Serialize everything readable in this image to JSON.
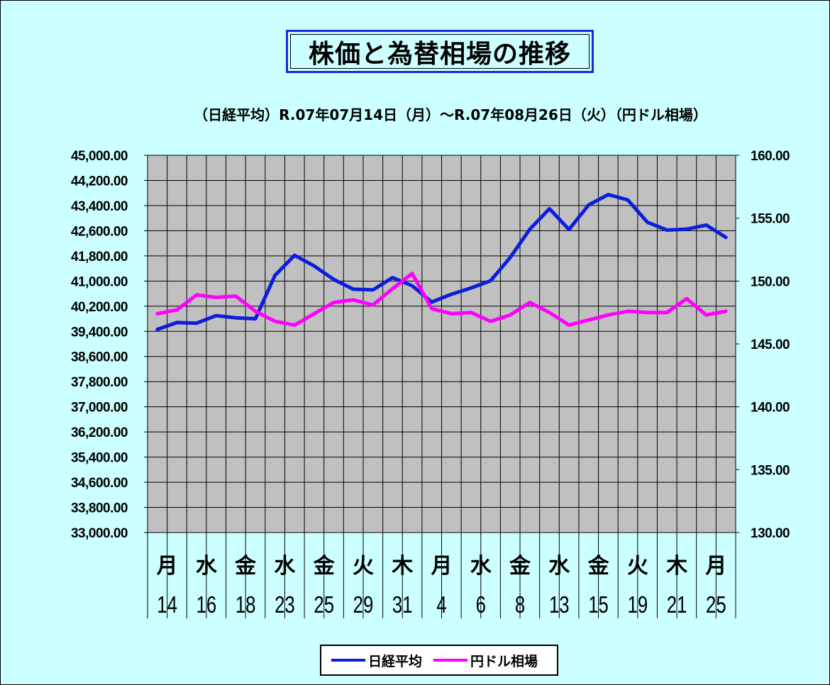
{
  "title": "株価と為替相場の推移",
  "subtitle": "（日経平均）R.07年07月14日（月）～R.07年08月26日（火）（円ドル相場）",
  "chart_data": {
    "type": "line",
    "title": "株価と為替相場の推移",
    "subtitle": "（日経平均）R.07年07月14日（月）～R.07年08月26日（火）（円ドル相場）",
    "x_weekday_labels": [
      "月",
      "水",
      "金",
      "水",
      "金",
      "火",
      "木",
      "月",
      "水",
      "金",
      "水",
      "金",
      "火",
      "木",
      "月"
    ],
    "x_day_labels": [
      "14",
      "16",
      "18",
      "23",
      "25",
      "29",
      "31",
      "4",
      "6",
      "8",
      "13",
      "15",
      "19",
      "21",
      "25"
    ],
    "y_left": {
      "min": 33000,
      "max": 45000,
      "step": 800,
      "tick_labels": [
        "45,000.00",
        "44,200.00",
        "43,400.00",
        "42,600.00",
        "41,800.00",
        "41,000.00",
        "40,200.00",
        "39,400.00",
        "38,600.00",
        "37,800.00",
        "37,000.00",
        "36,200.00",
        "35,400.00",
        "34,600.00",
        "33,800.00",
        "33,000.00"
      ]
    },
    "y_right": {
      "min": 130,
      "max": 160,
      "step": 5,
      "tick_labels": [
        "160.00",
        "155.00",
        "150.00",
        "145.00",
        "140.00",
        "135.00",
        "130.00"
      ]
    },
    "grid": true,
    "legend_position": "bottom",
    "series": [
      {
        "name": "日経平均",
        "axis": "left",
        "color": "#0a1edc",
        "values": [
          39460,
          39680,
          39660,
          39900,
          39830,
          39800,
          41180,
          41820,
          41480,
          41050,
          40740,
          40720,
          41110,
          40850,
          40330,
          40580,
          40780,
          41010,
          41750,
          42650,
          43300,
          42640,
          43420,
          43750,
          43580,
          42870,
          42620,
          42650,
          42780,
          42390
        ]
      },
      {
        "name": "円ドル相場",
        "axis": "right",
        "color": "#ff00ff",
        "values": [
          147.4,
          147.7,
          148.9,
          148.7,
          148.8,
          147.6,
          146.8,
          146.5,
          147.4,
          148.3,
          148.5,
          148.1,
          149.4,
          150.6,
          147.8,
          147.4,
          147.5,
          146.8,
          147.3,
          148.3,
          147.5,
          146.5,
          146.9,
          147.3,
          147.6,
          147.5,
          147.5,
          148.6,
          147.3,
          147.6
        ]
      }
    ]
  },
  "legend": {
    "items": [
      {
        "label": "日経平均",
        "color": "#0a1edc"
      },
      {
        "label": "円ドル相場",
        "color": "#ff00ff"
      }
    ]
  }
}
